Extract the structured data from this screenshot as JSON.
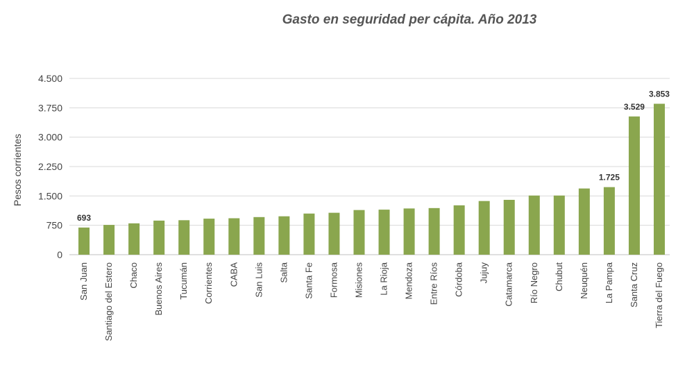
{
  "chart_data": {
    "type": "bar",
    "title": "Gasto en seguridad per cápita. Año 2013",
    "ylabel": "Pesos corrientes",
    "xlabel": "",
    "ylim": [
      0,
      4500
    ],
    "yticks": [
      {
        "value": 0,
        "label": "0"
      },
      {
        "value": 750,
        "label": "750"
      },
      {
        "value": 1500,
        "label": "1.500"
      },
      {
        "value": 2250,
        "label": "2.250"
      },
      {
        "value": 3000,
        "label": "3.000"
      },
      {
        "value": 3750,
        "label": "3.750"
      },
      {
        "value": 4500,
        "label": "4.500"
      }
    ],
    "grid": true,
    "bar_color": "#8aa64e",
    "categories": [
      "San Juan",
      "Santiago del Estero",
      "Chaco",
      "Buenos Aires",
      "Tucumán",
      "Corrientes",
      "CABA",
      "San Luis",
      "Salta",
      "Santa Fe",
      "Formosa",
      "Misiones",
      "La Rioja",
      "Mendoza",
      "Entre Ríos",
      "Córdoba",
      "Jujuy",
      "Catamarca",
      "Río Negro",
      "Chubut",
      "Neuquén",
      "La Pampa",
      "Santa Cruz",
      "Tierra del Fuego"
    ],
    "values": [
      693,
      760,
      800,
      870,
      880,
      920,
      930,
      960,
      980,
      1050,
      1070,
      1140,
      1150,
      1180,
      1190,
      1260,
      1370,
      1400,
      1510,
      1510,
      1690,
      1725,
      3529,
      3853
    ],
    "data_labels": [
      {
        "index": 0,
        "text": "693"
      },
      {
        "index": 21,
        "text": "1.725"
      },
      {
        "index": 22,
        "text": "3.529"
      },
      {
        "index": 23,
        "text": "3.853"
      }
    ]
  }
}
